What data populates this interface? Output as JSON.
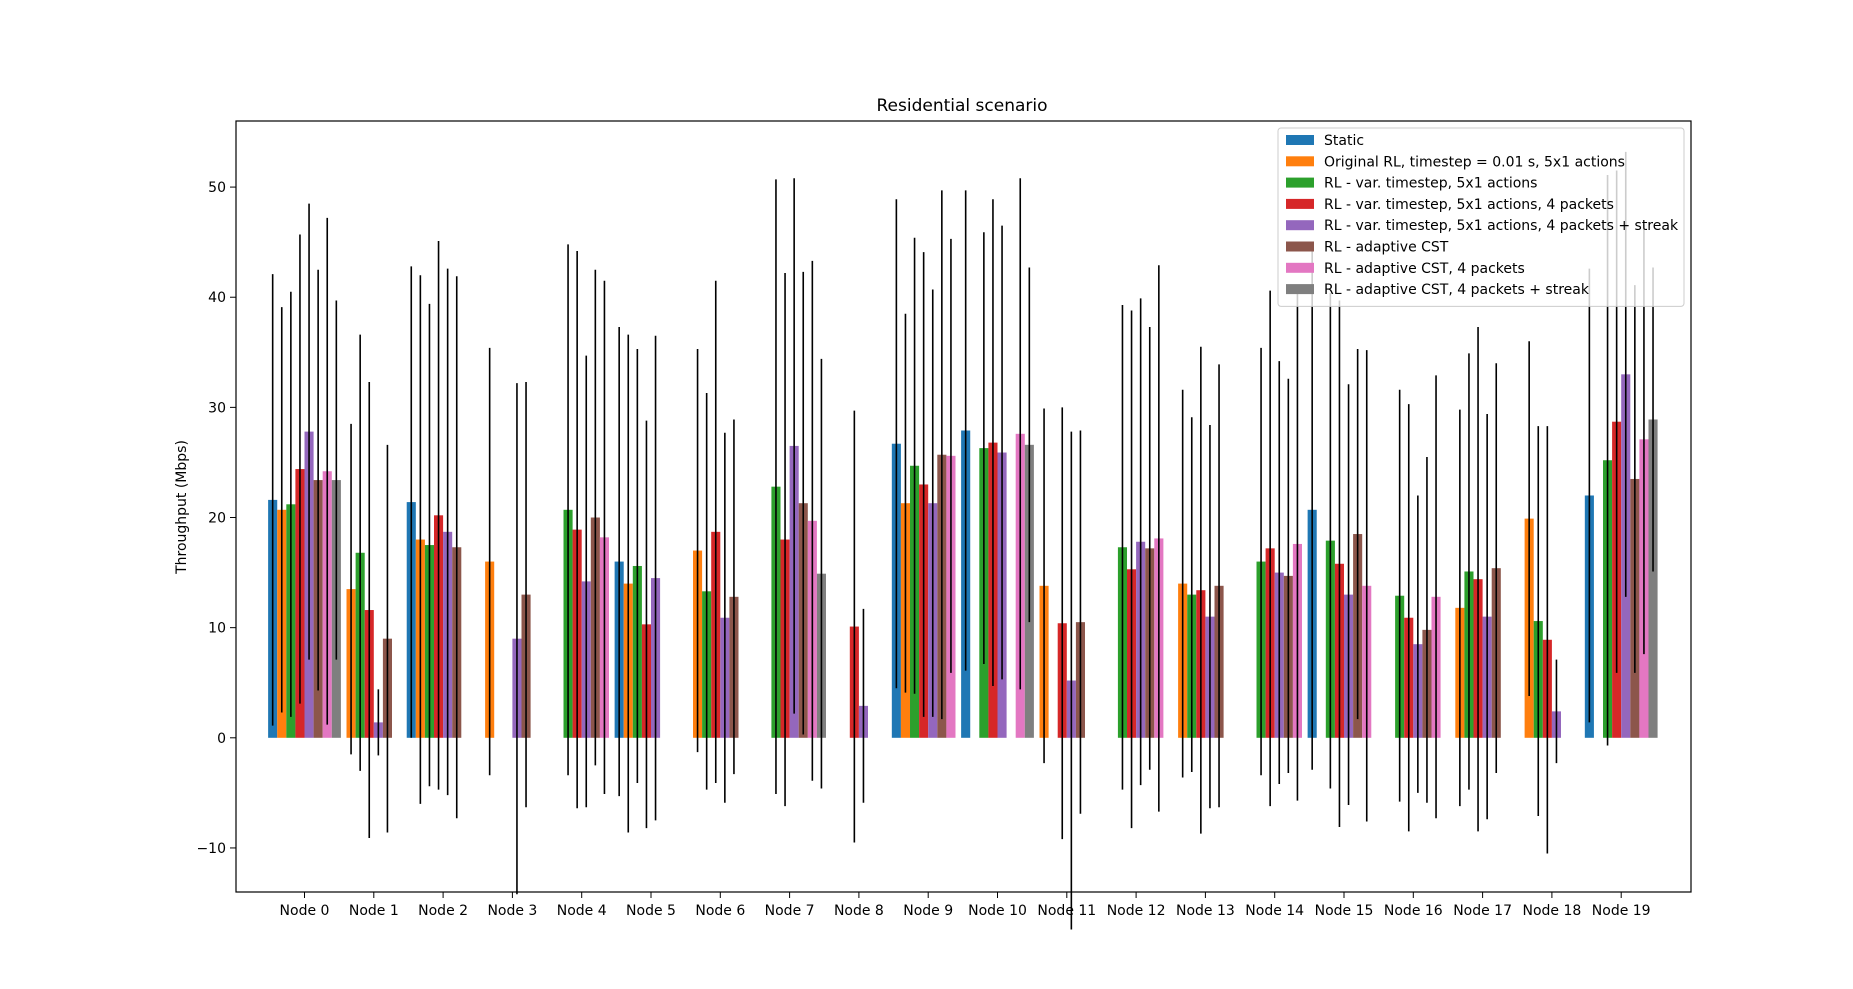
{
  "chart_data": {
    "type": "bar",
    "title": "Residential scenario",
    "xlabel": "",
    "ylabel": "Throughput (Mbps)",
    "ylim": [
      -14,
      56
    ],
    "yticks": [
      -10,
      0,
      10,
      20,
      30,
      40,
      50
    ],
    "legend_position": "top-right",
    "grid": false,
    "error_bars": true,
    "categories": [
      "Node 0",
      "Node 1",
      "Node 2",
      "Node 3",
      "Node 4",
      "Node 5",
      "Node 6",
      "Node 7",
      "Node 8",
      "Node 9",
      "Node 10",
      "Node 11",
      "Node 12",
      "Node 13",
      "Node 14",
      "Node 15",
      "Node 16",
      "Node 17",
      "Node 18",
      "Node 19"
    ],
    "series": [
      {
        "name": "Static",
        "color": "#1f77b4",
        "values": [
          21.6,
          0,
          21.4,
          0,
          0,
          16,
          0,
          0,
          0,
          26.7,
          27.9,
          0,
          0,
          0,
          0,
          20.7,
          0,
          0,
          0,
          22
        ],
        "err": [
          20.5,
          0,
          21.4,
          0,
          0,
          21.3,
          0,
          0,
          0,
          22.2,
          21.8,
          0,
          0,
          0,
          0,
          23.6,
          0,
          0,
          0,
          20.6
        ]
      },
      {
        "name": "Original RL, timestep = 0.01 s, 5x1 actions",
        "color": "#ff7f0e",
        "values": [
          20.7,
          13.5,
          18,
          16,
          0,
          14,
          17,
          0,
          0,
          21.3,
          0,
          13.8,
          0,
          14,
          0,
          0,
          0,
          11.8,
          19.9,
          0
        ],
        "err": [
          18.4,
          15,
          24,
          19.4,
          0,
          22.6,
          18.3,
          0,
          0,
          17.2,
          0,
          16.1,
          0,
          17.6,
          0,
          0,
          0,
          18,
          16.1,
          0
        ]
      },
      {
        "name": "RL - var. timestep, 5x1 actions",
        "color": "#2ca02c",
        "values": [
          21.2,
          16.8,
          17.5,
          0,
          20.7,
          15.6,
          13.3,
          22.8,
          0,
          24.7,
          26.3,
          0,
          17.3,
          13,
          16,
          17.9,
          12.9,
          15.1,
          10.6,
          25.2
        ],
        "err": [
          19.3,
          19.8,
          21.9,
          0,
          24.1,
          19.7,
          18,
          27.9,
          0,
          20.7,
          19.6,
          0,
          22,
          16.1,
          19.4,
          22.5,
          18.7,
          19.8,
          17.7,
          25.9
        ]
      },
      {
        "name": "RL - var. timestep, 5x1 actions, 4 packets",
        "color": "#d62728",
        "values": [
          24.4,
          11.6,
          20.2,
          0,
          18.9,
          10.3,
          18.7,
          18,
          10.1,
          23,
          26.8,
          10.4,
          15.3,
          13.4,
          17.2,
          15.8,
          10.9,
          14.4,
          8.9,
          28.7
        ],
        "err": [
          21.3,
          20.7,
          24.9,
          0,
          25.3,
          18.5,
          22.8,
          24.2,
          19.6,
          21.1,
          22.1,
          19.6,
          23.5,
          22.1,
          23.4,
          23.9,
          19.4,
          22.9,
          19.4,
          22.8
        ]
      },
      {
        "name": "RL - var. timestep, 5x1 actions, 4 packets + streak",
        "color": "#9467bd",
        "values": [
          27.8,
          1.4,
          18.7,
          9,
          14.2,
          14.5,
          10.9,
          26.5,
          2.9,
          21.3,
          25.9,
          5.2,
          17.8,
          11,
          15,
          13,
          8.5,
          11,
          2.4,
          33
        ],
        "err": [
          20.7,
          3,
          23.9,
          23.2,
          20.5,
          22,
          16.8,
          24.3,
          8.8,
          19.4,
          20.6,
          22.6,
          22.1,
          17.4,
          19.2,
          19.1,
          13.5,
          18.4,
          4.7,
          20.2
        ]
      },
      {
        "name": "RL - adaptive CST",
        "color": "#8c564b",
        "values": [
          23.4,
          9,
          17.3,
          13,
          20,
          0,
          12.8,
          21.3,
          0,
          25.7,
          0,
          10.5,
          17.2,
          13.8,
          14.7,
          18.5,
          9.8,
          15.4,
          0,
          23.5
        ],
        "err": [
          19.1,
          17.6,
          24.6,
          19.3,
          22.5,
          0,
          16.1,
          21,
          0,
          24,
          0,
          17.4,
          20.1,
          20.1,
          17.9,
          16.8,
          15.7,
          18.6,
          0,
          17.6
        ]
      },
      {
        "name": "RL - adaptive CST, 4 packets",
        "color": "#e377c2",
        "values": [
          24.2,
          0,
          0,
          0,
          18.2,
          0,
          0,
          19.7,
          0,
          25.6,
          27.6,
          0,
          18.1,
          0,
          17.6,
          13.8,
          12.8,
          0,
          0,
          27.1
        ],
        "err": [
          23,
          0,
          0,
          0,
          23.3,
          0,
          0,
          23.6,
          0,
          19.7,
          23.2,
          0,
          24.8,
          0,
          23.3,
          21.4,
          20.1,
          0,
          0,
          19.5
        ]
      },
      {
        "name": "RL - adaptive CST, 4 packets + streak",
        "color": "#7f7f7f",
        "values": [
          23.4,
          0,
          0,
          0,
          0,
          0,
          0,
          14.9,
          0,
          0,
          26.6,
          0,
          0,
          0,
          0,
          0,
          0,
          0,
          0,
          28.9
        ],
        "err": [
          16.3,
          0,
          0,
          0,
          0,
          0,
          0,
          19.5,
          0,
          0,
          16.1,
          0,
          0,
          0,
          0,
          0,
          0,
          0,
          0,
          13.8
        ]
      }
    ]
  }
}
